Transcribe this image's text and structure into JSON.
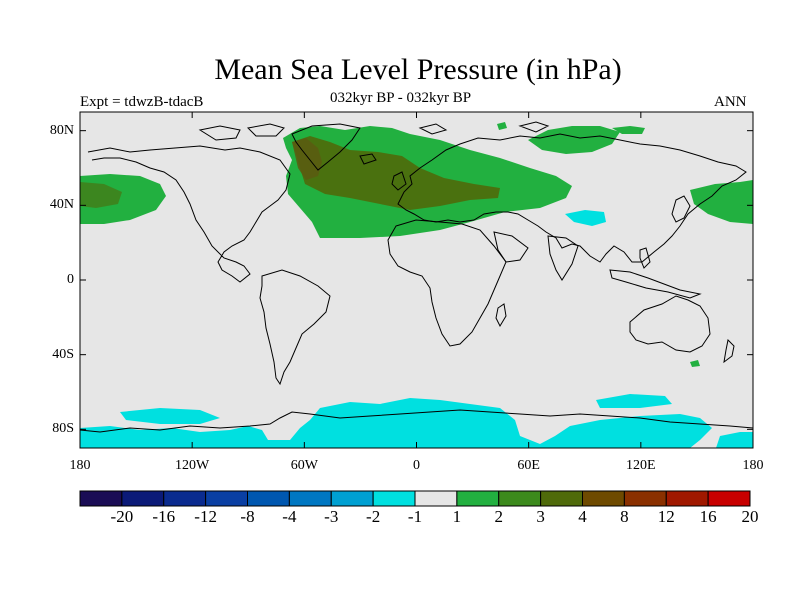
{
  "title": "Mean Sea Level Pressure (in hPa)",
  "subtitle_left": "Expt = tdwzB-tdacB",
  "subtitle_center": "032kyr BP - 032kyr BP",
  "subtitle_right": "ANN",
  "map": {
    "lon_range": [
      -180,
      180
    ],
    "lat_range": [
      -90,
      90
    ],
    "x_ticks": [
      {
        "lon": -180,
        "label": "180"
      },
      {
        "lon": -120,
        "label": "120W"
      },
      {
        "lon": -60,
        "label": "60W"
      },
      {
        "lon": 0,
        "label": "0"
      },
      {
        "lon": 60,
        "label": "60E"
      },
      {
        "lon": 120,
        "label": "120E"
      },
      {
        "lon": 180,
        "label": "180"
      }
    ],
    "y_ticks": [
      {
        "lat": 80,
        "label": "80N"
      },
      {
        "lat": 40,
        "label": "40N"
      },
      {
        "lat": 0,
        "label": "0"
      },
      {
        "lat": -40,
        "label": "40S"
      },
      {
        "lat": -80,
        "label": "80S"
      }
    ],
    "background_color": "#e6e6e6"
  },
  "colorbar": {
    "labels": [
      "-20",
      "-16",
      "-12",
      "-8",
      "-4",
      "-3",
      "-2",
      "-1",
      "1",
      "2",
      "3",
      "4",
      "8",
      "12",
      "16",
      "20"
    ],
    "colors": [
      "#1a0c55",
      "#0b1a78",
      "#0a2b8f",
      "#0a3fa3",
      "#0057b0",
      "#0077c2",
      "#00a0d2",
      "#00e0e0",
      "#e6e6e6",
      "#22b040",
      "#3c8a1c",
      "#4f6a0a",
      "#6e4a00",
      "#8a3000",
      "#a01800",
      "#c80000"
    ]
  }
}
